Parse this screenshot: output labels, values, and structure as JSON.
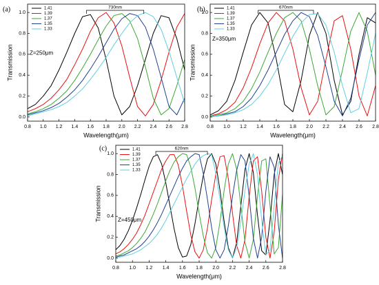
{
  "chart_data": [
    {
      "type": "line",
      "panel": "(a)",
      "xlabel": "Wavelength(μm)",
      "ylabel": "Transmission",
      "note": "Z=250μm",
      "bracket": {
        "label": "730nm",
        "x": [
          1.55,
          2.28
        ]
      },
      "xlim": [
        0.8,
        2.8
      ],
      "ylim": [
        -0.04,
        1.08
      ],
      "xticks": [
        0.8,
        {
          "value": 1,
          "label": "1.0"
        },
        1.2,
        1.4,
        1.6,
        1.8,
        {
          "value": 2,
          "label": "2.0"
        },
        2.2,
        2.4,
        2.6,
        2.8
      ],
      "yticks": [
        {
          "value": 0,
          "label": "0.0"
        },
        0.2,
        0.4,
        0.6,
        0.8,
        {
          "value": 1,
          "label": "1.0"
        }
      ],
      "x": [
        0.8,
        0.9,
        1.0,
        1.1,
        1.2,
        1.3,
        1.4,
        1.5,
        1.6,
        1.7,
        1.8,
        1.9,
        2.0,
        2.1,
        2.2,
        2.3,
        2.4,
        2.5,
        2.6,
        2.7,
        2.8
      ],
      "series": [
        {
          "name": "1.41",
          "color": "#000000",
          "values": [
            0.08,
            0.12,
            0.2,
            0.3,
            0.45,
            0.62,
            0.8,
            0.96,
            0.98,
            0.85,
            0.55,
            0.2,
            0.02,
            0.1,
            0.3,
            0.55,
            0.8,
            0.97,
            0.95,
            0.75,
            0.45
          ]
        },
        {
          "name": "1.39",
          "color": "#e8100f",
          "values": [
            0.05,
            0.08,
            0.12,
            0.18,
            0.26,
            0.36,
            0.5,
            0.65,
            0.82,
            0.95,
            1.0,
            0.9,
            0.68,
            0.38,
            0.1,
            0.01,
            0.12,
            0.35,
            0.62,
            0.86,
            0.99
          ]
        },
        {
          "name": "1.37",
          "color": "#3aa832",
          "values": [
            0.03,
            0.05,
            0.08,
            0.12,
            0.18,
            0.25,
            0.35,
            0.47,
            0.6,
            0.74,
            0.87,
            0.97,
            0.99,
            0.92,
            0.75,
            0.48,
            0.18,
            0.02,
            0.08,
            0.3,
            0.55
          ]
        },
        {
          "name": "1.35",
          "color": "#1f3f8f",
          "values": [
            0.02,
            0.04,
            0.06,
            0.09,
            0.13,
            0.19,
            0.26,
            0.35,
            0.46,
            0.58,
            0.71,
            0.84,
            0.94,
            0.99,
            0.97,
            0.86,
            0.65,
            0.38,
            0.1,
            0.02,
            0.18
          ]
        },
        {
          "name": "1.33",
          "color": "#5fcfe0",
          "values": [
            0.01,
            0.03,
            0.05,
            0.07,
            0.1,
            0.14,
            0.2,
            0.27,
            0.36,
            0.46,
            0.57,
            0.69,
            0.8,
            0.9,
            0.97,
            1.0,
            0.96,
            0.84,
            0.63,
            0.38,
            0.13
          ]
        }
      ]
    },
    {
      "type": "line",
      "panel": "(b)",
      "xlabel": "Wavelength(μm)",
      "ylabel": "Transmission",
      "note": "Z=350μm",
      "bracket": {
        "label": "670nm",
        "x": [
          1.38,
          2.05
        ]
      },
      "xlim": [
        0.8,
        2.8
      ],
      "ylim": [
        -0.04,
        1.08
      ],
      "xticks": [
        0.8,
        {
          "value": 1,
          "label": "1.0"
        },
        1.2,
        1.4,
        1.6,
        1.8,
        {
          "value": 2,
          "label": "2.0"
        },
        2.2,
        2.4,
        2.6,
        2.8
      ],
      "yticks": [
        {
          "value": 0,
          "label": "0.0"
        },
        0.2,
        0.4,
        0.6,
        0.8,
        {
          "value": 1,
          "label": "1.0"
        }
      ],
      "x": [
        0.8,
        0.9,
        1.0,
        1.1,
        1.2,
        1.3,
        1.4,
        1.5,
        1.6,
        1.7,
        1.8,
        1.9,
        2.0,
        2.1,
        2.2,
        2.3,
        2.4,
        2.5,
        2.6,
        2.7,
        2.8
      ],
      "series": [
        {
          "name": "1.41",
          "color": "#000000",
          "values": [
            0.02,
            0.06,
            0.15,
            0.35,
            0.62,
            0.88,
            1.0,
            0.9,
            0.55,
            0.12,
            0.05,
            0.35,
            0.78,
            1.0,
            0.8,
            0.35,
            0.02,
            0.15,
            0.6,
            0.95,
            0.9
          ]
        },
        {
          "name": "1.39",
          "color": "#e8100f",
          "values": [
            0.01,
            0.03,
            0.07,
            0.14,
            0.28,
            0.47,
            0.7,
            0.9,
            1.0,
            0.92,
            0.65,
            0.28,
            0.02,
            0.15,
            0.55,
            0.92,
            0.97,
            0.65,
            0.2,
            0.01,
            0.3
          ]
        },
        {
          "name": "1.37",
          "color": "#3aa832",
          "values": [
            0.01,
            0.02,
            0.04,
            0.08,
            0.15,
            0.27,
            0.43,
            0.62,
            0.8,
            0.95,
            1.0,
            0.92,
            0.65,
            0.3,
            0.02,
            0.1,
            0.45,
            0.82,
            1.0,
            0.82,
            0.4
          ]
        },
        {
          "name": "1.35",
          "color": "#1f3f8f",
          "values": [
            0.0,
            0.01,
            0.03,
            0.05,
            0.1,
            0.18,
            0.3,
            0.45,
            0.62,
            0.79,
            0.92,
            1.0,
            0.96,
            0.78,
            0.48,
            0.15,
            0.01,
            0.18,
            0.55,
            0.88,
            1.0
          ]
        },
        {
          "name": "1.33",
          "color": "#5fcfe0",
          "values": [
            0.0,
            0.01,
            0.02,
            0.04,
            0.07,
            0.12,
            0.2,
            0.31,
            0.45,
            0.61,
            0.77,
            0.9,
            0.98,
            0.99,
            0.88,
            0.62,
            0.3,
            0.04,
            0.08,
            0.42,
            0.8
          ]
        }
      ]
    },
    {
      "type": "line",
      "panel": "(c)",
      "xlabel": "Wavelength(μm)",
      "ylabel": "Transmission",
      "note": "Z=450μm",
      "bracket": {
        "label": "620nm",
        "x": [
          1.28,
          1.9
        ]
      },
      "xlim": [
        0.8,
        2.8
      ],
      "ylim": [
        -0.04,
        1.08
      ],
      "xticks": [
        0.8,
        {
          "value": 1,
          "label": "1.0"
        },
        1.2,
        1.4,
        1.6,
        1.8,
        {
          "value": 2,
          "label": "2.0"
        },
        2.2,
        2.4,
        2.6,
        2.8
      ],
      "yticks": [
        {
          "value": 0,
          "label": "0.0"
        },
        0.2,
        0.4,
        0.6,
        0.8,
        {
          "value": 1,
          "label": "1.0"
        }
      ],
      "x": [
        0.8,
        0.85,
        0.9,
        0.95,
        1.0,
        1.05,
        1.1,
        1.15,
        1.2,
        1.25,
        1.3,
        1.35,
        1.4,
        1.45,
        1.5,
        1.55,
        1.6,
        1.65,
        1.7,
        1.75,
        1.8,
        1.85,
        1.9,
        1.95,
        2.0,
        2.05,
        2.1,
        2.15,
        2.2,
        2.25,
        2.3,
        2.35,
        2.4,
        2.45,
        2.5,
        2.55,
        2.6,
        2.65,
        2.7,
        2.75,
        2.8
      ],
      "series": [
        {
          "name": "1.41",
          "color": "#000000",
          "values": [
            0.08,
            0.12,
            0.18,
            0.26,
            0.36,
            0.48,
            0.61,
            0.75,
            0.88,
            0.97,
            0.99,
            0.9,
            0.72,
            0.5,
            0.28,
            0.1,
            0.01,
            0.02,
            0.13,
            0.33,
            0.57,
            0.79,
            0.95,
            1.0,
            0.9,
            0.65,
            0.35,
            0.1,
            0.0,
            0.15,
            0.5,
            0.85,
            1.0,
            0.82,
            0.41,
            0.07,
            0.03,
            0.36,
            0.8,
            1.0,
            0.8
          ]
        },
        {
          "name": "1.39",
          "color": "#e8100f",
          "values": [
            0.04,
            0.06,
            0.09,
            0.13,
            0.18,
            0.24,
            0.32,
            0.41,
            0.52,
            0.63,
            0.74,
            0.85,
            0.93,
            0.99,
            0.99,
            0.89,
            0.69,
            0.45,
            0.22,
            0.06,
            0.0,
            0.08,
            0.29,
            0.56,
            0.8,
            0.97,
            0.98,
            0.76,
            0.43,
            0.12,
            0.0,
            0.18,
            0.59,
            0.93,
            0.97,
            0.64,
            0.2,
            0.0,
            0.25,
            0.75,
            1.0
          ]
        },
        {
          "name": "1.37",
          "color": "#3aa832",
          "values": [
            0.02,
            0.03,
            0.05,
            0.07,
            0.1,
            0.14,
            0.19,
            0.25,
            0.33,
            0.42,
            0.52,
            0.63,
            0.74,
            0.84,
            0.92,
            0.97,
            1.0,
            0.99,
            0.87,
            0.67,
            0.43,
            0.21,
            0.05,
            0.0,
            0.1,
            0.35,
            0.65,
            0.9,
            1.0,
            0.85,
            0.5,
            0.15,
            0.0,
            0.18,
            0.59,
            0.93,
            0.95,
            0.5,
            0.04,
            0.1,
            0.61
          ]
        },
        {
          "name": "1.35",
          "color": "#1f3f8f",
          "values": [
            0.01,
            0.02,
            0.03,
            0.05,
            0.07,
            0.09,
            0.12,
            0.16,
            0.21,
            0.27,
            0.34,
            0.42,
            0.51,
            0.6,
            0.69,
            0.78,
            0.86,
            0.93,
            0.97,
            1.0,
            0.99,
            0.81,
            0.56,
            0.29,
            0.08,
            0.0,
            0.08,
            0.31,
            0.59,
            0.84,
            0.99,
            0.93,
            0.59,
            0.19,
            0.0,
            0.2,
            0.64,
            0.97,
            0.87,
            0.32,
            0.0
          ]
        },
        {
          "name": "1.33",
          "color": "#5fcfe0",
          "values": [
            0.0,
            0.01,
            0.02,
            0.03,
            0.04,
            0.06,
            0.08,
            0.11,
            0.14,
            0.18,
            0.23,
            0.29,
            0.36,
            0.44,
            0.52,
            0.6,
            0.68,
            0.76,
            0.83,
            0.9,
            0.95,
            0.98,
            1.0,
            0.99,
            0.81,
            0.56,
            0.29,
            0.08,
            0.0,
            0.1,
            0.35,
            0.65,
            0.9,
            1.0,
            0.8,
            0.36,
            0.03,
            0.08,
            0.5,
            0.91,
            0.98
          ]
        }
      ]
    }
  ]
}
